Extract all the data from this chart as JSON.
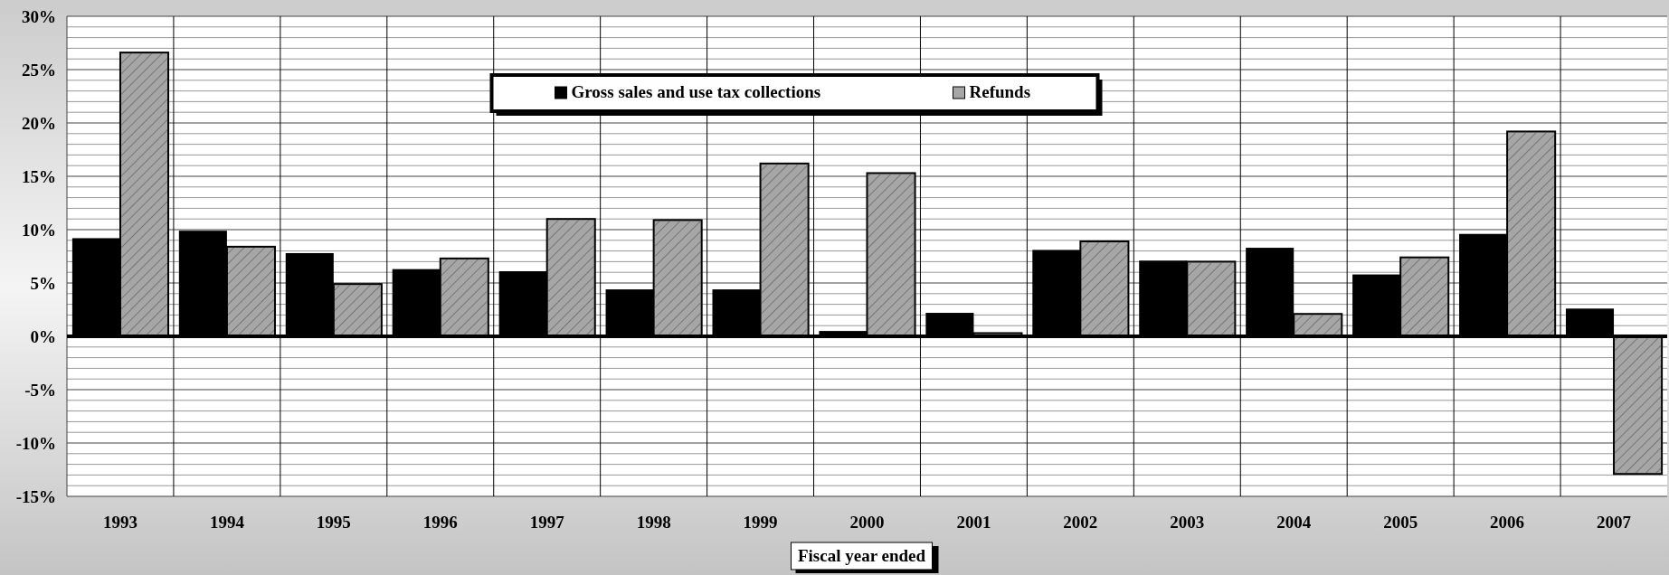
{
  "chart_data": {
    "type": "bar",
    "xlabel": "Fiscal year ended",
    "categories": [
      "1993",
      "1994",
      "1995",
      "1996",
      "1997",
      "1998",
      "1999",
      "2000",
      "2001",
      "2002",
      "2003",
      "2004",
      "2005",
      "2006",
      "2007"
    ],
    "series": [
      {
        "name": "Gross sales and use tax collections",
        "color": "#000000",
        "values": [
          9.2,
          9.9,
          7.8,
          6.3,
          6.1,
          4.4,
          4.4,
          0.5,
          2.2,
          8.1,
          7.1,
          8.3,
          5.8,
          9.6,
          2.6
        ]
      },
      {
        "name": "Refunds",
        "color": "#a6a6a6",
        "values": [
          26.6,
          8.4,
          4.9,
          7.3,
          11.0,
          10.9,
          16.2,
          15.3,
          0.3,
          8.9,
          7.0,
          2.1,
          7.4,
          19.2,
          -12.9
        ]
      }
    ],
    "ylim": [
      -15,
      30
    ],
    "yticks": [
      {
        "value": -15,
        "label": "-15%"
      },
      {
        "value": -14,
        "label": null
      },
      {
        "value": -13,
        "label": null
      },
      {
        "value": -12,
        "label": null
      },
      {
        "value": -11,
        "label": null
      },
      {
        "value": -10,
        "label": "-10%"
      },
      {
        "value": -9,
        "label": null
      },
      {
        "value": -8,
        "label": null
      },
      {
        "value": -7,
        "label": null
      },
      {
        "value": -6,
        "label": null
      },
      {
        "value": -5,
        "label": "-5%"
      },
      {
        "value": -4,
        "label": null
      },
      {
        "value": -3,
        "label": null
      },
      {
        "value": -2,
        "label": null
      },
      {
        "value": -1,
        "label": null
      },
      {
        "value": 0,
        "label": "0%"
      },
      {
        "value": 1,
        "label": null
      },
      {
        "value": 2,
        "label": null
      },
      {
        "value": 3,
        "label": null
      },
      {
        "value": 4,
        "label": null
      },
      {
        "value": 5,
        "label": "5%"
      },
      {
        "value": 6,
        "label": null
      },
      {
        "value": 7,
        "label": null
      },
      {
        "value": 8,
        "label": null
      },
      {
        "value": 9,
        "label": null
      },
      {
        "value": 10,
        "label": "10%"
      },
      {
        "value": 11,
        "label": null
      },
      {
        "value": 12,
        "label": null
      },
      {
        "value": 13,
        "label": null
      },
      {
        "value": 14,
        "label": null
      },
      {
        "value": 15,
        "label": "15%"
      },
      {
        "value": 16,
        "label": null
      },
      {
        "value": 17,
        "label": null
      },
      {
        "value": 18,
        "label": null
      },
      {
        "value": 19,
        "label": null
      },
      {
        "value": 20,
        "label": "20%"
      },
      {
        "value": 21,
        "label": null
      },
      {
        "value": 22,
        "label": null
      },
      {
        "value": 23,
        "label": null
      },
      {
        "value": 24,
        "label": null
      },
      {
        "value": 25,
        "label": "25%"
      },
      {
        "value": 26,
        "label": null
      },
      {
        "value": 27,
        "label": null
      },
      {
        "value": 28,
        "label": null
      },
      {
        "value": 29,
        "label": null
      },
      {
        "value": 30,
        "label": "30%"
      }
    ],
    "grid": true,
    "legend": "top"
  }
}
